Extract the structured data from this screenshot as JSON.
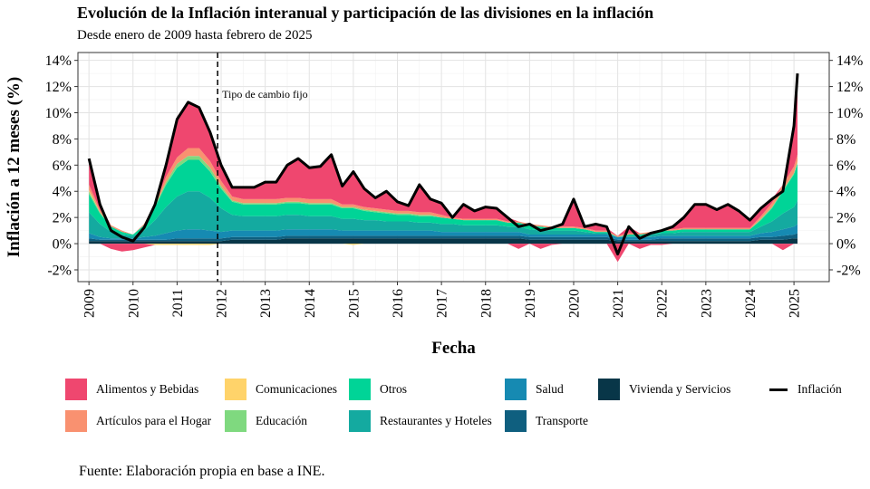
{
  "title": "Evolución de la Inflación interanual y participación de las divisiones en la inflación",
  "subtitle": "Desde enero de 2009 hasta febrero de 2025",
  "source": "Fuente: Elaboración propia en base a INE.",
  "chart_data": {
    "type": "area",
    "title": "Evolución de la Inflación interanual y participación de las divisiones en la inflación",
    "subtitle": "Desde enero de 2009 hasta febrero de 2025",
    "xlabel": "Fecha",
    "ylabel": "Inflación a 12 meses (%)",
    "xlim": [
      2008.75,
      2025.8
    ],
    "ylim": [
      -0.029,
      0.146
    ],
    "x_ticks": [
      2009,
      2010,
      2011,
      2012,
      2013,
      2014,
      2015,
      2016,
      2017,
      2018,
      2019,
      2020,
      2021,
      2022,
      2023,
      2024,
      2025
    ],
    "y_ticks": [
      -0.02,
      0,
      0.02,
      0.04,
      0.06,
      0.08,
      0.1,
      0.12,
      0.14
    ],
    "y_tick_labels": [
      "-2%",
      "0%",
      "2%",
      "4%",
      "6%",
      "8%",
      "10%",
      "12%",
      "14%"
    ],
    "grid": true,
    "legend_position": "bottom",
    "annotation": {
      "x": 2011.92,
      "label": "Tipo de cambio fijo"
    },
    "x": [
      2009.0,
      2009.25,
      2009.5,
      2009.75,
      2010.0,
      2010.25,
      2010.5,
      2010.75,
      2011.0,
      2011.25,
      2011.5,
      2011.75,
      2012.0,
      2012.25,
      2012.5,
      2012.75,
      2013.0,
      2013.25,
      2013.5,
      2013.75,
      2014.0,
      2014.25,
      2014.5,
      2014.75,
      2015.0,
      2015.25,
      2015.5,
      2015.75,
      2016.0,
      2016.25,
      2016.5,
      2016.75,
      2017.0,
      2017.25,
      2017.5,
      2017.75,
      2018.0,
      2018.25,
      2018.5,
      2018.75,
      2019.0,
      2019.25,
      2019.5,
      2019.75,
      2020.0,
      2020.25,
      2020.5,
      2020.75,
      2021.0,
      2021.25,
      2021.5,
      2021.75,
      2022.0,
      2022.25,
      2022.5,
      2022.75,
      2023.0,
      2023.25,
      2023.5,
      2023.75,
      2024.0,
      2024.25,
      2024.5,
      2024.75,
      2025.0,
      2025.08
    ],
    "inflation": [
      0.065,
      0.03,
      0.01,
      0.005,
      0.002,
      0.012,
      0.03,
      0.06,
      0.095,
      0.108,
      0.104,
      0.085,
      0.06,
      0.043,
      0.043,
      0.043,
      0.047,
      0.047,
      0.06,
      0.065,
      0.058,
      0.059,
      0.068,
      0.044,
      0.055,
      0.042,
      0.035,
      0.04,
      0.032,
      0.029,
      0.045,
      0.034,
      0.031,
      0.02,
      0.03,
      0.025,
      0.028,
      0.027,
      0.02,
      0.013,
      0.015,
      0.01,
      0.012,
      0.015,
      0.034,
      0.013,
      0.015,
      0.013,
      -0.008,
      0.013,
      0.004,
      0.008,
      0.01,
      0.013,
      0.02,
      0.03,
      0.03,
      0.026,
      0.03,
      0.025,
      0.018,
      0.027,
      0.034,
      0.04,
      0.09,
      0.13
    ],
    "series": [
      {
        "name": "Vivienda y Servicios",
        "color": "#083648",
        "values": [
          0.002,
          0.002,
          0.002,
          0.002,
          0.002,
          0.002,
          0.002,
          0.002,
          0.002,
          0.002,
          0.002,
          0.002,
          0.002,
          0.003,
          0.003,
          0.003,
          0.003,
          0.003,
          0.004,
          0.004,
          0.004,
          0.004,
          0.004,
          0.004,
          0.004,
          0.004,
          0.004,
          0.004,
          0.004,
          0.004,
          0.004,
          0.004,
          0.004,
          0.004,
          0.004,
          0.004,
          0.004,
          0.004,
          0.004,
          0.004,
          0.003,
          0.003,
          0.003,
          0.003,
          0.003,
          0.003,
          0.003,
          0.003,
          0.002,
          0.002,
          0.002,
          0.002,
          0.002,
          0.002,
          0.002,
          0.002,
          0.002,
          0.002,
          0.002,
          0.002,
          0.002,
          0.003,
          0.003,
          0.003,
          0.004,
          0.004
        ]
      },
      {
        "name": "Transporte",
        "color": "#0f5f7f",
        "values": [
          0.002,
          0.001,
          0.001,
          0.001,
          0.001,
          0.001,
          0.001,
          0.001,
          0.002,
          0.002,
          0.002,
          0.002,
          0.002,
          0.002,
          0.002,
          0.002,
          0.002,
          0.002,
          0.002,
          0.002,
          0.002,
          0.002,
          0.002,
          0.002,
          0.002,
          0.002,
          0.002,
          0.002,
          0.002,
          0.002,
          0.002,
          0.002,
          0.002,
          0.002,
          0.002,
          0.002,
          0.002,
          0.002,
          0.002,
          0.002,
          0.002,
          0.002,
          0.002,
          0.002,
          0.002,
          0.002,
          0.002,
          0.002,
          0.001,
          0.001,
          0.001,
          0.001,
          0.002,
          0.002,
          0.002,
          0.002,
          0.002,
          0.002,
          0.002,
          0.002,
          0.002,
          0.002,
          0.002,
          0.003,
          0.003,
          0.004
        ]
      },
      {
        "name": "Salud",
        "color": "#168ab2",
        "values": [
          0.004,
          0.002,
          0.001,
          0.001,
          0.001,
          0.002,
          0.003,
          0.005,
          0.006,
          0.007,
          0.007,
          0.006,
          0.005,
          0.005,
          0.005,
          0.005,
          0.005,
          0.005,
          0.005,
          0.005,
          0.005,
          0.005,
          0.005,
          0.004,
          0.004,
          0.004,
          0.004,
          0.004,
          0.004,
          0.004,
          0.004,
          0.004,
          0.003,
          0.003,
          0.003,
          0.003,
          0.003,
          0.003,
          0.003,
          0.003,
          0.002,
          0.002,
          0.002,
          0.002,
          0.002,
          0.002,
          0.002,
          0.002,
          0.002,
          0.002,
          0.002,
          0.002,
          0.002,
          0.002,
          0.002,
          0.002,
          0.002,
          0.002,
          0.002,
          0.002,
          0.002,
          0.003,
          0.004,
          0.005,
          0.006,
          0.007
        ]
      },
      {
        "name": "Restaurantes y Hoteles",
        "color": "#14aaa0",
        "values": [
          0.016,
          0.01,
          0.005,
          0.003,
          0.002,
          0.005,
          0.012,
          0.02,
          0.026,
          0.029,
          0.029,
          0.025,
          0.018,
          0.012,
          0.011,
          0.011,
          0.011,
          0.011,
          0.011,
          0.011,
          0.01,
          0.01,
          0.01,
          0.009,
          0.009,
          0.008,
          0.008,
          0.007,
          0.007,
          0.007,
          0.006,
          0.006,
          0.006,
          0.006,
          0.005,
          0.005,
          0.005,
          0.005,
          0.004,
          0.004,
          0.004,
          0.003,
          0.003,
          0.003,
          0.003,
          0.002,
          0.001,
          0.001,
          0.0,
          0.001,
          0.001,
          0.002,
          0.002,
          0.002,
          0.003,
          0.003,
          0.003,
          0.003,
          0.003,
          0.003,
          0.003,
          0.005,
          0.008,
          0.012,
          0.015,
          0.018
        ]
      },
      {
        "name": "Otros",
        "color": "#00d497",
        "values": [
          0.014,
          0.008,
          0.004,
          0.002,
          0.001,
          0.004,
          0.01,
          0.017,
          0.022,
          0.024,
          0.024,
          0.02,
          0.015,
          0.01,
          0.009,
          0.009,
          0.009,
          0.009,
          0.009,
          0.009,
          0.009,
          0.009,
          0.009,
          0.008,
          0.008,
          0.007,
          0.006,
          0.006,
          0.005,
          0.005,
          0.005,
          0.005,
          0.005,
          0.004,
          0.004,
          0.004,
          0.004,
          0.004,
          0.003,
          0.003,
          0.003,
          0.003,
          0.002,
          0.002,
          0.002,
          0.002,
          0.001,
          0.001,
          0.0,
          0.001,
          0.001,
          0.001,
          0.002,
          0.002,
          0.002,
          0.002,
          0.002,
          0.002,
          0.002,
          0.002,
          0.002,
          0.005,
          0.01,
          0.017,
          0.025,
          0.028
        ]
      },
      {
        "name": "Educación",
        "color": "#7fd97f",
        "values": [
          0.002,
          0.001,
          0.0,
          0.0,
          0.0,
          0.0,
          0.001,
          0.002,
          0.003,
          0.003,
          0.003,
          0.003,
          0.002,
          0.001,
          0.001,
          0.001,
          0.001,
          0.001,
          0.001,
          0.001,
          0.001,
          0.001,
          0.001,
          0.001,
          0.001,
          0.001,
          0.001,
          0.001,
          0.001,
          0.001,
          0.001,
          0.001,
          0.0,
          0.0,
          0.0,
          0.0,
          0.0,
          0.0,
          0.0,
          0.0,
          0.0,
          0.0,
          0.0,
          0.0,
          0.0,
          0.0,
          0.0,
          0.0,
          0.0,
          0.0,
          0.0,
          0.0,
          0.0,
          0.0,
          0.0,
          0.0,
          0.0,
          0.0,
          0.0,
          0.0,
          0.0,
          0.001,
          0.001,
          0.001,
          0.001,
          0.001
        ]
      },
      {
        "name": "Comunicaciones",
        "color": "#ffd36a",
        "values": [
          0.001,
          0.0,
          0.0,
          0.0,
          0.0,
          0.0,
          -0.001,
          -0.001,
          -0.001,
          -0.001,
          -0.001,
          -0.001,
          0.0,
          0.0,
          0.0,
          0.0,
          0.0,
          0.0,
          0.0,
          0.0,
          0.0,
          0.0,
          0.0,
          0.0,
          -0.001,
          0.0,
          0.0,
          0.0,
          0.0,
          0.0,
          0.0,
          0.0,
          0.0,
          0.0,
          0.0,
          0.0,
          0.0,
          0.0,
          0.0,
          0.0,
          0.0,
          0.0,
          0.0,
          0.0,
          0.0,
          0.0,
          0.0,
          0.0,
          0.0,
          0.0,
          0.0,
          0.0,
          0.0,
          0.0,
          0.0,
          0.0,
          0.0,
          0.0,
          0.0,
          0.0,
          0.0,
          0.0,
          0.0,
          0.0,
          0.0,
          0.001
        ]
      },
      {
        "name": "Artículos para el Hogar",
        "color": "#f99170",
        "values": [
          0.004,
          0.002,
          0.001,
          0.001,
          0.0,
          0.001,
          0.002,
          0.004,
          0.005,
          0.006,
          0.006,
          0.005,
          0.004,
          0.003,
          0.003,
          0.003,
          0.003,
          0.003,
          0.003,
          0.003,
          0.003,
          0.003,
          0.003,
          0.002,
          0.002,
          0.002,
          0.002,
          0.002,
          0.002,
          0.002,
          0.002,
          0.002,
          0.002,
          0.001,
          0.001,
          0.001,
          0.001,
          0.001,
          0.001,
          0.001,
          0.001,
          0.001,
          0.001,
          0.001,
          0.001,
          0.001,
          0.001,
          0.001,
          0.001,
          0.001,
          0.001,
          0.001,
          0.001,
          0.001,
          0.001,
          0.001,
          0.001,
          0.001,
          0.001,
          0.001,
          0.001,
          0.002,
          0.003,
          0.004,
          0.005,
          0.005
        ]
      },
      {
        "name": "Alimentos y Bebidas",
        "color": "#ef476f",
        "values": [
          0.02,
          0.004,
          -0.004,
          -0.006,
          -0.005,
          -0.003,
          0.0,
          0.01,
          0.031,
          0.036,
          0.032,
          0.023,
          0.012,
          0.007,
          0.009,
          0.009,
          0.013,
          0.013,
          0.025,
          0.03,
          0.024,
          0.025,
          0.034,
          0.014,
          0.025,
          0.014,
          0.008,
          0.014,
          0.007,
          0.004,
          0.021,
          0.01,
          0.009,
          0.0,
          0.011,
          0.006,
          0.009,
          0.008,
          0.003,
          -0.004,
          0.0,
          -0.004,
          -0.001,
          0.002,
          0.021,
          0.001,
          0.004,
          0.002,
          -0.014,
          0.005,
          -0.004,
          -0.001,
          -0.001,
          0.002,
          0.008,
          0.018,
          0.018,
          0.014,
          0.018,
          0.013,
          0.006,
          0.006,
          0.003,
          -0.005,
          0.031,
          0.062
        ]
      }
    ]
  },
  "legend": [
    {
      "label": "Alimentos y Bebidas",
      "color": "#ef476f"
    },
    {
      "label": "Artículos para el Hogar",
      "color": "#f99170"
    },
    {
      "label": "Comunicaciones",
      "color": "#ffd36a"
    },
    {
      "label": "Educación",
      "color": "#7fd97f"
    },
    {
      "label": "Otros",
      "color": "#00d497"
    },
    {
      "label": "Restaurantes y Hoteles",
      "color": "#14aaa0"
    },
    {
      "label": "Salud",
      "color": "#168ab2"
    },
    {
      "label": "Transporte",
      "color": "#0f5f7f"
    },
    {
      "label": "Vivienda y Servicios",
      "color": "#083648"
    },
    {
      "label": "Inflación",
      "color": "#000000"
    }
  ]
}
